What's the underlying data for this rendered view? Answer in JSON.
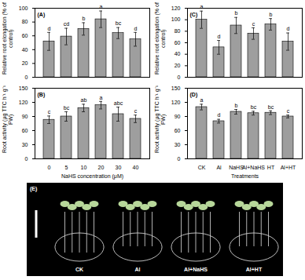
{
  "chart_data": [
    {
      "type": "bar",
      "title": "(A)",
      "y_label": "Relative root elongation (% of control)",
      "categories": [
        "0",
        "5",
        "10",
        "20",
        "30",
        "40"
      ],
      "values": [
        52,
        59,
        70,
        84,
        64,
        55
      ],
      "errors": [
        13,
        12,
        9,
        12,
        8,
        10
      ],
      "letters": [
        "d",
        "cd",
        "b",
        "a",
        "bc",
        "d"
      ],
      "color": "#9e9e9e",
      "ylim": [
        0,
        100
      ],
      "yticks": [
        0,
        20,
        40,
        60,
        80,
        100
      ],
      "tick_labels": "y"
    },
    {
      "type": "bar",
      "title": "(B)",
      "y_label": "Root activity (μg TTC h⁻¹ g⁻¹ FW)",
      "x_label": "NaHS concentration (μM)",
      "categories": [
        "0",
        "5",
        "10",
        "20",
        "30",
        "40"
      ],
      "values": [
        83,
        90,
        108,
        114,
        95,
        85
      ],
      "errors": [
        8,
        10,
        8,
        8,
        15,
        8
      ],
      "letters": [
        "c",
        "bc",
        "ab",
        "a",
        "abc",
        "c"
      ],
      "color": "#9e9e9e",
      "ylim": [
        0,
        150
      ],
      "yticks": [
        0,
        30,
        60,
        90,
        120,
        150
      ]
    },
    {
      "type": "bar",
      "title": "(C)",
      "y_label": "Relative root elongation (% of control)",
      "categories": [
        "CK",
        "Al",
        "NaHS",
        "Al+NaHS",
        "HT",
        "Al+HT"
      ],
      "values": [
        100,
        52,
        90,
        76,
        92,
        62
      ],
      "errors": [
        15,
        12,
        14,
        10,
        10,
        15
      ],
      "letters": [
        "a",
        "d",
        "b",
        "c",
        "b",
        "d"
      ],
      "color": "#9e9e9e",
      "ylim": [
        0,
        120
      ],
      "yticks": [
        0,
        20,
        40,
        60,
        80,
        100,
        120
      ],
      "tick_labels": "y"
    },
    {
      "type": "bar",
      "title": "(D)",
      "y_label": "Root activity (μg TTC h⁻¹ g⁻¹ FW)",
      "x_label": "Treatments",
      "categories": [
        "CK",
        "Al",
        "NaHS",
        "Al+NaHS",
        "HT",
        "Al+HT"
      ],
      "values": [
        110,
        80,
        100,
        97,
        98,
        90
      ],
      "errors": [
        6,
        4,
        5,
        4,
        4,
        3
      ],
      "letters": [
        "a",
        "d",
        "b",
        "bc",
        "bc",
        "c"
      ],
      "color": "#9e9e9e",
      "ylim": [
        0,
        150
      ],
      "yticks": [
        0,
        30,
        60,
        90,
        120,
        150
      ]
    }
  ],
  "photo": {
    "title": "(E)",
    "labels": [
      "CK",
      "Al",
      "Al+NaHS",
      "Al+HT"
    ]
  }
}
